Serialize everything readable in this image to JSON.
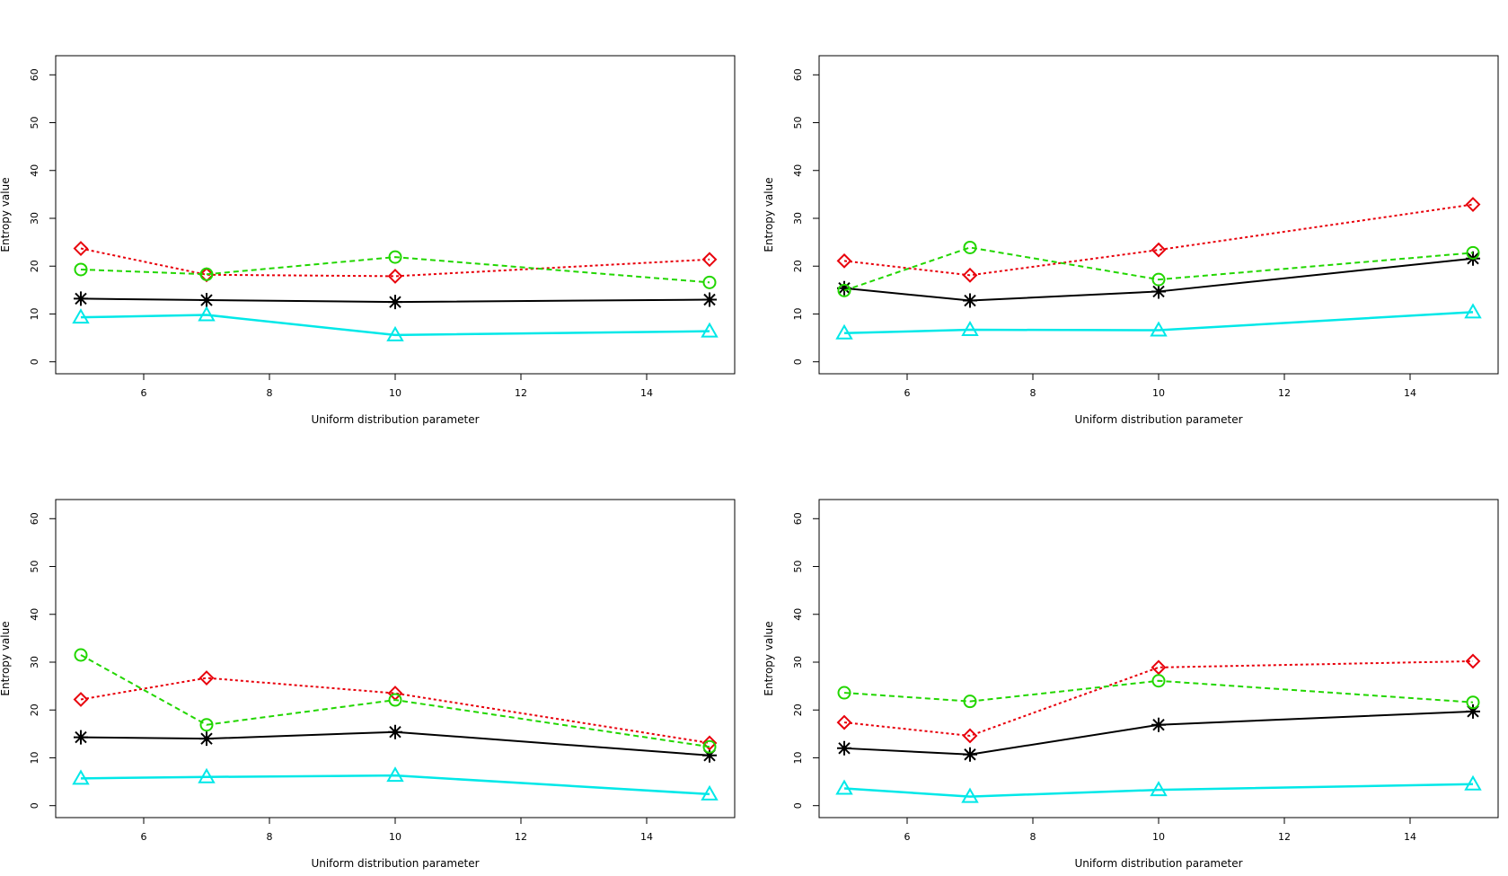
{
  "colors": {
    "black": "#000000",
    "red": "#e8000b",
    "green": "#22d600",
    "cyan": "#00e8e8"
  },
  "chart_data": [
    {
      "type": "line",
      "title": "",
      "xlabel": "Uniform distribution parameter",
      "ylabel": "Entropy value",
      "x": [
        5,
        7,
        10,
        15
      ],
      "xlim": [
        4.6,
        15.4
      ],
      "ylim": [
        -2.5,
        64
      ],
      "xticks": [
        6,
        8,
        10,
        12,
        14
      ],
      "yticks": [
        0,
        10,
        20,
        30,
        40,
        50,
        60
      ],
      "grid": false,
      "series": [
        {
          "name": "black-star",
          "color": "black",
          "line": "solid",
          "marker": "star",
          "values": [
            13.2,
            12.9,
            12.5,
            13.0
          ]
        },
        {
          "name": "red-diamond",
          "color": "red",
          "line": "dotted",
          "marker": "diamond",
          "values": [
            23.7,
            18.2,
            17.9,
            21.4
          ]
        },
        {
          "name": "green-circle",
          "color": "green",
          "line": "dashed",
          "marker": "circle",
          "values": [
            19.3,
            18.3,
            21.9,
            16.6
          ]
        },
        {
          "name": "cyan-triangle",
          "color": "cyan",
          "line": "solid",
          "marker": "triangle",
          "values": [
            9.3,
            9.8,
            5.6,
            6.4
          ]
        }
      ]
    },
    {
      "type": "line",
      "title": "",
      "xlabel": "Uniform distribution parameter",
      "ylabel": "Entropy value",
      "x": [
        5,
        7,
        10,
        15
      ],
      "xlim": [
        4.6,
        15.4
      ],
      "ylim": [
        -2.5,
        64
      ],
      "xticks": [
        6,
        8,
        10,
        12,
        14
      ],
      "yticks": [
        0,
        10,
        20,
        30,
        40,
        50,
        60
      ],
      "grid": false,
      "series": [
        {
          "name": "black-star",
          "color": "black",
          "line": "solid",
          "marker": "star",
          "values": [
            15.4,
            12.8,
            14.7,
            21.6
          ]
        },
        {
          "name": "red-diamond",
          "color": "red",
          "line": "dotted",
          "marker": "diamond",
          "values": [
            21.1,
            18.1,
            23.4,
            32.9
          ]
        },
        {
          "name": "green-circle",
          "color": "green",
          "line": "dashed",
          "marker": "circle",
          "values": [
            14.9,
            23.9,
            17.2,
            22.8
          ]
        },
        {
          "name": "cyan-triangle",
          "color": "cyan",
          "line": "solid",
          "marker": "triangle",
          "values": [
            6.0,
            6.7,
            6.6,
            10.4
          ]
        }
      ]
    },
    {
      "type": "line",
      "title": "",
      "xlabel": "Uniform distribution parameter",
      "ylabel": "Entropy value",
      "x": [
        5,
        7,
        10,
        15
      ],
      "xlim": [
        4.6,
        15.4
      ],
      "ylim": [
        -2.5,
        64
      ],
      "xticks": [
        6,
        8,
        10,
        12,
        14
      ],
      "yticks": [
        0,
        10,
        20,
        30,
        40,
        50,
        60
      ],
      "grid": false,
      "series": [
        {
          "name": "black-star",
          "color": "black",
          "line": "solid",
          "marker": "star",
          "values": [
            14.3,
            14.0,
            15.4,
            10.5
          ]
        },
        {
          "name": "red-diamond",
          "color": "red",
          "line": "dotted",
          "marker": "diamond",
          "values": [
            22.2,
            26.7,
            23.5,
            13.1
          ]
        },
        {
          "name": "green-circle",
          "color": "green",
          "line": "dashed",
          "marker": "circle",
          "values": [
            31.5,
            16.9,
            22.1,
            12.3
          ]
        },
        {
          "name": "cyan-triangle",
          "color": "cyan",
          "line": "solid",
          "marker": "triangle",
          "values": [
            5.7,
            6.0,
            6.3,
            2.4
          ]
        }
      ]
    },
    {
      "type": "line",
      "title": "",
      "xlabel": "Uniform distribution parameter",
      "ylabel": "Entropy value",
      "x": [
        5,
        7,
        10,
        15
      ],
      "xlim": [
        4.6,
        15.4
      ],
      "ylim": [
        -2.5,
        64
      ],
      "xticks": [
        6,
        8,
        10,
        12,
        14
      ],
      "yticks": [
        0,
        10,
        20,
        30,
        40,
        50,
        60
      ],
      "grid": false,
      "series": [
        {
          "name": "black-star",
          "color": "black",
          "line": "solid",
          "marker": "star",
          "values": [
            12.0,
            10.7,
            16.9,
            19.7
          ]
        },
        {
          "name": "red-diamond",
          "color": "red",
          "line": "dotted",
          "marker": "diamond",
          "values": [
            17.4,
            14.6,
            28.9,
            30.2
          ]
        },
        {
          "name": "green-circle",
          "color": "green",
          "line": "dashed",
          "marker": "circle",
          "values": [
            23.6,
            21.8,
            26.1,
            21.6
          ]
        },
        {
          "name": "cyan-triangle",
          "color": "cyan",
          "line": "solid",
          "marker": "triangle",
          "values": [
            3.6,
            1.9,
            3.3,
            4.5
          ]
        }
      ]
    }
  ]
}
